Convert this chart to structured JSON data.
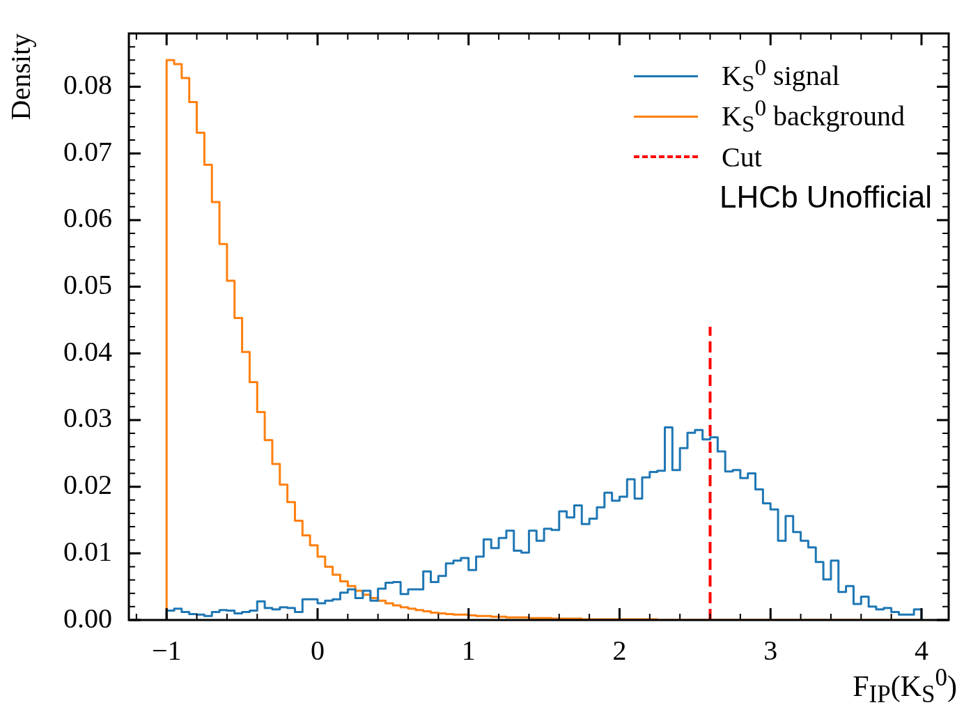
{
  "chart_data": {
    "type": "histogram",
    "xlabel": "F$_{IP}$(K$_{S}$$^{0}$)",
    "ylabel": "Density",
    "bins": [
      -1,
      -0.95,
      -0.9,
      -0.85,
      -0.8,
      -0.75,
      -0.7,
      -0.65,
      -0.6,
      -0.55,
      -0.5,
      -0.45,
      -0.4,
      -0.35,
      -0.3,
      -0.25,
      -0.2,
      -0.15,
      -0.1,
      -0.05,
      0,
      0.05,
      0.1,
      0.15,
      0.2,
      0.25,
      0.3,
      0.35,
      0.4,
      0.45,
      0.5,
      0.55,
      0.6,
      0.65,
      0.7,
      0.75,
      0.8,
      0.85,
      0.9,
      0.95,
      1,
      1.05,
      1.1,
      1.15,
      1.2,
      1.25,
      1.3,
      1.35,
      1.4,
      1.45,
      1.5,
      1.55,
      1.6,
      1.65,
      1.7,
      1.75,
      1.8,
      1.85,
      1.9,
      1.95,
      2,
      2.05,
      2.1,
      2.15,
      2.2,
      2.25,
      2.3,
      2.35,
      2.4,
      2.45,
      2.5,
      2.55,
      2.6,
      2.65,
      2.7,
      2.75,
      2.8,
      2.85,
      2.9,
      2.95,
      3,
      3.05,
      3.1,
      3.15,
      3.2,
      3.25,
      3.3,
      3.35,
      3.4,
      3.45,
      3.5,
      3.55,
      3.6,
      3.65,
      3.7,
      3.75,
      3.8,
      3.85,
      3.9,
      3.95,
      4
    ],
    "series": [
      {
        "name": "K$_{S}$$^{0}$ signal",
        "color": "#1f77b4",
        "values": [
          0.0014,
          0.0017,
          0.0012,
          0.0009,
          0.0008,
          0.0006,
          0.0012,
          0.0015,
          0.0014,
          0.001,
          0.0012,
          0.0014,
          0.0028,
          0.0018,
          0.0016,
          0.0019,
          0.0018,
          0.0012,
          0.0031,
          0.0031,
          0.0025,
          0.0029,
          0.0031,
          0.0041,
          0.0046,
          0.0033,
          0.0044,
          0.0029,
          0.0047,
          0.0056,
          0.0057,
          0.0039,
          0.0046,
          0.0046,
          0.0073,
          0.0057,
          0.0066,
          0.0085,
          0.0089,
          0.0093,
          0.0075,
          0.0095,
          0.0121,
          0.0108,
          0.0123,
          0.0134,
          0.0104,
          0.0101,
          0.0134,
          0.0119,
          0.0137,
          0.0135,
          0.0163,
          0.0154,
          0.0172,
          0.0144,
          0.0152,
          0.0169,
          0.0191,
          0.0179,
          0.0185,
          0.0211,
          0.0182,
          0.0214,
          0.0222,
          0.0224,
          0.0289,
          0.0225,
          0.0258,
          0.0281,
          0.0285,
          0.0271,
          0.0274,
          0.0253,
          0.0223,
          0.0225,
          0.0213,
          0.022,
          0.0196,
          0.0175,
          0.0166,
          0.0119,
          0.0156,
          0.0132,
          0.0119,
          0.0109,
          0.0087,
          0.0061,
          0.0089,
          0.0042,
          0.0051,
          0.0024,
          0.0035,
          0.002,
          0.0016,
          0.0018,
          0.0012,
          0.0008,
          0.0008,
          0.0016
        ]
      },
      {
        "name": "K$_{S}$$^{0}$ background",
        "color": "#ff7f0e",
        "values": [
          0.084,
          0.0834,
          0.0813,
          0.0777,
          0.0731,
          0.0683,
          0.0627,
          0.0564,
          0.0509,
          0.0453,
          0.0402,
          0.0357,
          0.0312,
          0.027,
          0.0234,
          0.0203,
          0.0177,
          0.0149,
          0.0127,
          0.0112,
          0.0095,
          0.008,
          0.0068,
          0.0058,
          0.0051,
          0.0044,
          0.0038,
          0.0033,
          0.0029,
          0.0025,
          0.0022,
          0.0019,
          0.0017,
          0.0015,
          0.0013,
          0.0011,
          0.001,
          0.0009,
          0.0008,
          0.0008,
          0.0007,
          0.0006,
          0.0006,
          0.0005,
          0.0005,
          0.0004,
          0.0004,
          0.0004,
          0.0003,
          0.0003,
          0.0003,
          0.0002,
          0.0002,
          0.0002,
          0.0002,
          0.0001,
          0.0001,
          0.0001,
          0.0001,
          0.0001,
          0.0001,
          0.0001,
          0.0001,
          0.0001,
          0.0001,
          0,
          0,
          0,
          0,
          0,
          0,
          0,
          0,
          0,
          0,
          0,
          0,
          0,
          0,
          0,
          0,
          0,
          0,
          0,
          0,
          0,
          0,
          0,
          0,
          0,
          0,
          0,
          0,
          0,
          0,
          0,
          0,
          0,
          0,
          0
        ]
      }
    ],
    "xlim": [
      -1.25,
      4.18
    ],
    "ylim": [
      0,
      0.088
    ],
    "xticks": [
      {
        "value": -1,
        "label": "−1"
      },
      0,
      1,
      2,
      3,
      4
    ],
    "yticks": [
      {
        "value": 0,
        "label": "0.00"
      },
      0.01,
      0.02,
      0.03,
      0.04,
      0.05,
      0.06,
      0.07,
      0.08
    ],
    "ref_lines": [
      {
        "axis": "x",
        "value": 2.6,
        "label": "Cut",
        "color": "#ff0000",
        "line_style": "dashed"
      }
    ],
    "legend": "top right",
    "annotations": [
      "LHCb Unofficial"
    ]
  }
}
